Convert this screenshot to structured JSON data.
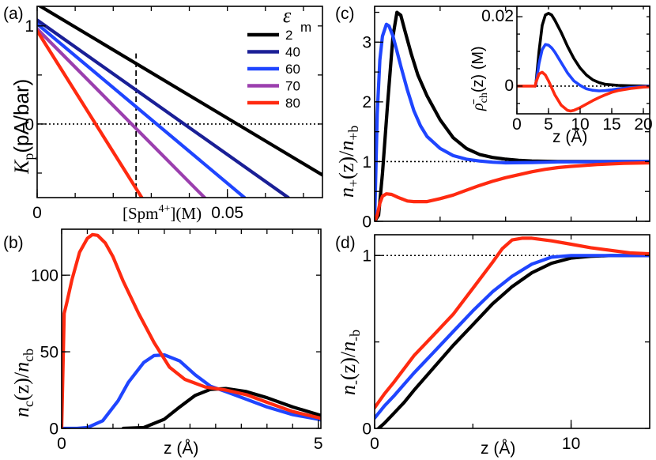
{
  "colors": {
    "black": "#000000",
    "navy": "#1a1f96",
    "blue": "#1f45ff",
    "purple": "#9b3fae",
    "red": "#ff2a10"
  },
  "chart_data": [
    {
      "id": "a",
      "panel_label": "(a)",
      "type": "line",
      "xlabel": "[Spm4+](M)",
      "ylabel": "Kp(pA/bar)",
      "xlim": [
        0,
        0.075
      ],
      "ylim": [
        -0.75,
        1.2
      ],
      "xticks": [
        {
          "v": 0,
          "t": "0"
        },
        {
          "v": 0.05,
          "t": "0.05"
        }
      ],
      "yticks": [
        {
          "v": 0,
          "t": "0"
        },
        {
          "v": 1,
          "t": "1"
        }
      ],
      "hline": 0,
      "vline": {
        "x": 0.026,
        "ymin": -0.75,
        "ymax": 0.72
      },
      "legend": {
        "title": "ε",
        "title_sub": "m",
        "position": "top-right"
      },
      "series": [
        {
          "name": "2",
          "color": "#000000",
          "x": [
            0,
            0.075
          ],
          "y": [
            1.22,
            -0.52
          ]
        },
        {
          "name": "40",
          "color": "#1a1f96",
          "x": [
            0,
            0.066
          ],
          "y": [
            1.06,
            -0.75
          ]
        },
        {
          "name": "60",
          "color": "#1f45ff",
          "x": [
            0,
            0.0545
          ],
          "y": [
            1.02,
            -0.75
          ]
        },
        {
          "name": "70",
          "color": "#9b3fae",
          "x": [
            0,
            0.044
          ],
          "y": [
            0.97,
            -0.75
          ]
        },
        {
          "name": "80",
          "color": "#ff2a10",
          "x": [
            0,
            0.0275
          ],
          "y": [
            0.95,
            -0.75
          ]
        }
      ]
    },
    {
      "id": "b",
      "panel_label": "(b)",
      "type": "line",
      "xlabel": "z (Å)",
      "ylabel": "nc(z)/ncb",
      "xlim": [
        0,
        5.05
      ],
      "ylim": [
        0,
        130
      ],
      "xticks": [
        {
          "v": 0,
          "t": "0"
        },
        {
          "v": 5,
          "t": "5"
        }
      ],
      "yticks": [
        {
          "v": 0,
          "t": "0"
        },
        {
          "v": 50,
          "t": "50"
        },
        {
          "v": 100,
          "t": "100"
        }
      ],
      "series": [
        {
          "name": "black",
          "color": "#000000",
          "x": [
            1.2,
            1.6,
            2.0,
            2.3,
            2.6,
            2.9,
            3.2,
            3.6,
            4.0,
            4.5,
            5.0,
            5.05
          ],
          "y": [
            0,
            0.5,
            6,
            14,
            21.5,
            25.5,
            26,
            24,
            20,
            14,
            9,
            8.5
          ]
        },
        {
          "name": "blue",
          "color": "#1f45ff",
          "x": [
            0,
            0.3,
            0.5,
            0.8,
            1.1,
            1.3,
            1.6,
            1.8,
            2.0,
            2.3,
            2.6,
            2.9,
            3.2,
            3.6,
            4.0,
            4.5,
            5.0,
            5.05
          ],
          "y": [
            0,
            0,
            0.5,
            5,
            18,
            30,
            43,
            47.5,
            48,
            44,
            35,
            27.5,
            24,
            19,
            14,
            9,
            6,
            5.5
          ]
        },
        {
          "name": "red",
          "color": "#ff2a10",
          "x": [
            0,
            0.05,
            0.1,
            0.2,
            0.35,
            0.5,
            0.6,
            0.7,
            0.85,
            1.0,
            1.2,
            1.5,
            1.8,
            2.1,
            2.4,
            2.8,
            3.2,
            3.6,
            4.0,
            4.5,
            5.0,
            5.05
          ],
          "y": [
            0,
            75,
            82,
            97,
            115,
            124,
            126.5,
            126,
            121,
            112,
            96,
            75,
            56,
            40,
            32,
            27,
            25,
            22,
            17,
            11,
            7,
            6.5
          ]
        }
      ]
    },
    {
      "id": "c",
      "panel_label": "(c)",
      "type": "line",
      "xlabel": "",
      "ylabel": "n+(z)/n+b",
      "xlim": [
        0,
        21
      ],
      "ylim": [
        0,
        3.6
      ],
      "xticks": [],
      "yticks": [
        {
          "v": 0,
          "t": "0"
        },
        {
          "v": 1,
          "t": "1"
        },
        {
          "v": 2,
          "t": "2"
        },
        {
          "v": 3,
          "t": "3"
        }
      ],
      "hline": 1,
      "series": [
        {
          "name": "black",
          "color": "#000000",
          "x": [
            0,
            0.3,
            0.6,
            1.0,
            1.4,
            1.7,
            2.0,
            2.3,
            2.8,
            3.3,
            4.0,
            5.0,
            6.0,
            7.0,
            8.0,
            9.0,
            10.0,
            11.0,
            12.0,
            14.0,
            16.0,
            21.0
          ],
          "y": [
            0,
            0.1,
            0.8,
            2.0,
            3.1,
            3.5,
            3.45,
            3.2,
            2.8,
            2.45,
            2.1,
            1.7,
            1.4,
            1.22,
            1.12,
            1.07,
            1.04,
            1.02,
            1.01,
            1.0,
            1.0,
            1.0
          ]
        },
        {
          "name": "blue",
          "color": "#1f45ff",
          "x": [
            0,
            0.2,
            0.4,
            0.6,
            0.9,
            1.1,
            1.4,
            1.7,
            2.0,
            2.5,
            3.0,
            3.5,
            4.0,
            5.0,
            6.0,
            7.0,
            8.0,
            9.0,
            10.0,
            12.0,
            14.0,
            21.0
          ],
          "y": [
            0,
            1.8,
            2.7,
            3.1,
            3.3,
            3.27,
            3.1,
            2.85,
            2.6,
            2.2,
            1.85,
            1.6,
            1.42,
            1.22,
            1.1,
            1.04,
            1.01,
            0.99,
            0.98,
            0.985,
            0.995,
            1.0
          ]
        },
        {
          "name": "red",
          "color": "#ff2a10",
          "x": [
            0,
            0.2,
            0.4,
            0.6,
            0.9,
            1.3,
            1.8,
            2.5,
            3.0,
            4.0,
            5.0,
            6.0,
            7.0,
            8.0,
            9.0,
            10.0,
            11.0,
            12.0,
            13.0,
            14.0,
            15.0,
            17.0,
            19.0,
            21.0
          ],
          "y": [
            0,
            0.1,
            0.3,
            0.42,
            0.46,
            0.45,
            0.4,
            0.34,
            0.33,
            0.33,
            0.38,
            0.44,
            0.52,
            0.6,
            0.67,
            0.73,
            0.78,
            0.83,
            0.87,
            0.9,
            0.92,
            0.95,
            0.97,
            0.98
          ]
        }
      ]
    },
    {
      "id": "c-inset",
      "panel_label": "",
      "type": "line",
      "xlabel": "z (Å)",
      "ylabel": "ρch(z) (M)",
      "xlim": [
        0,
        21
      ],
      "ylim": [
        -0.008,
        0.023
      ],
      "xticks": [
        {
          "v": 0,
          "t": "0"
        },
        {
          "v": 5,
          "t": "5"
        },
        {
          "v": 10,
          "t": "10"
        },
        {
          "v": 15,
          "t": "15"
        },
        {
          "v": 20,
          "t": "20"
        }
      ],
      "yticks": [
        {
          "v": 0,
          "t": "0"
        },
        {
          "v": 0.02,
          "t": "0.02"
        }
      ],
      "hline": 0,
      "series": [
        {
          "name": "black",
          "color": "#000000",
          "x": [
            2.9,
            3.0,
            3.5,
            4.0,
            4.5,
            5.0,
            5.5,
            6.0,
            7.0,
            8.0,
            9.0,
            10.0,
            11.0,
            12.0,
            13.0,
            14.0,
            16.0,
            18.0,
            21.0
          ],
          "y": [
            0,
            0.0005,
            0.01,
            0.0175,
            0.0205,
            0.021,
            0.0205,
            0.019,
            0.0155,
            0.0115,
            0.008,
            0.0052,
            0.0032,
            0.0018,
            0.001,
            0.0005,
            0.0002,
            0.0001,
            0
          ]
        },
        {
          "name": "blue",
          "color": "#1f45ff",
          "x": [
            2.9,
            3.0,
            3.5,
            4.0,
            4.5,
            5.0,
            5.5,
            6.0,
            7.0,
            8.0,
            9.0,
            10.0,
            11.0,
            12.0,
            13.0,
            14.0,
            15.0,
            16.0,
            18.0,
            21.0
          ],
          "y": [
            0,
            0.0005,
            0.0065,
            0.0105,
            0.012,
            0.0118,
            0.011,
            0.0098,
            0.0068,
            0.0038,
            0.0015,
            0.0002,
            -0.0008,
            -0.0012,
            -0.0014,
            -0.0013,
            -0.0011,
            -0.0008,
            -0.0004,
            0
          ]
        },
        {
          "name": "red",
          "color": "#ff2a10",
          "x": [
            0,
            2.9,
            3.0,
            3.5,
            4.0,
            4.5,
            5.0,
            5.5,
            6.0,
            7.0,
            8.0,
            8.5,
            9.0,
            10.0,
            11.0,
            12.0,
            13.0,
            14.0,
            15.0,
            16.0,
            18.0,
            20.0,
            21.0
          ],
          "y": [
            0,
            0,
            0.001,
            0.0035,
            0.004,
            0.0032,
            0.0015,
            -0.0005,
            -0.0025,
            -0.0055,
            -0.007,
            -0.0072,
            -0.007,
            -0.0062,
            -0.0052,
            -0.0042,
            -0.0033,
            -0.0025,
            -0.0018,
            -0.0013,
            -0.0007,
            -0.0003,
            -0.0002
          ]
        }
      ]
    },
    {
      "id": "d",
      "panel_label": "(d)",
      "type": "line",
      "xlabel": "z (Å)",
      "ylabel": "n-(z)/n-b",
      "xlim": [
        0,
        14
      ],
      "ylim": [
        0,
        1.12
      ],
      "xticks": [
        {
          "v": 0,
          "t": "0"
        },
        {
          "v": 10,
          "t": "10"
        }
      ],
      "yticks": [
        {
          "v": 0,
          "t": "0"
        },
        {
          "v": 1,
          "t": "1"
        }
      ],
      "hline": 1,
      "series": [
        {
          "name": "black",
          "color": "#000000",
          "x": [
            0.2,
            0.5,
            1.0,
            1.5,
            2.0,
            3.0,
            4.0,
            5.0,
            6.0,
            7.0,
            8.0,
            9.0,
            10.0,
            11.0,
            12.0,
            13.0,
            14.0
          ],
          "y": [
            0,
            0.03,
            0.09,
            0.15,
            0.22,
            0.35,
            0.48,
            0.6,
            0.72,
            0.82,
            0.9,
            0.955,
            0.985,
            0.995,
            1.0,
            1.0,
            1.0
          ]
        },
        {
          "name": "blue",
          "color": "#1f45ff",
          "x": [
            0,
            0.5,
            1.0,
            2.0,
            3.0,
            4.0,
            5.0,
            6.0,
            7.0,
            8.0,
            9.0,
            10.0,
            11.0,
            12.0,
            14.0
          ],
          "y": [
            0.06,
            0.13,
            0.19,
            0.32,
            0.44,
            0.56,
            0.68,
            0.79,
            0.88,
            0.95,
            0.99,
            1.0,
            1.0,
            1.0,
            1.0
          ]
        },
        {
          "name": "red",
          "color": "#ff2a10",
          "x": [
            0,
            0.5,
            1.0,
            2.0,
            3.0,
            4.0,
            5.0,
            6.0,
            6.5,
            7.0,
            7.5,
            8.0,
            9.0,
            10.0,
            11.0,
            12.0,
            13.0,
            14.0
          ],
          "y": [
            0.12,
            0.2,
            0.27,
            0.42,
            0.54,
            0.66,
            0.81,
            0.96,
            1.04,
            1.09,
            1.1,
            1.1,
            1.085,
            1.065,
            1.045,
            1.03,
            1.015,
            1.01
          ]
        }
      ]
    }
  ]
}
